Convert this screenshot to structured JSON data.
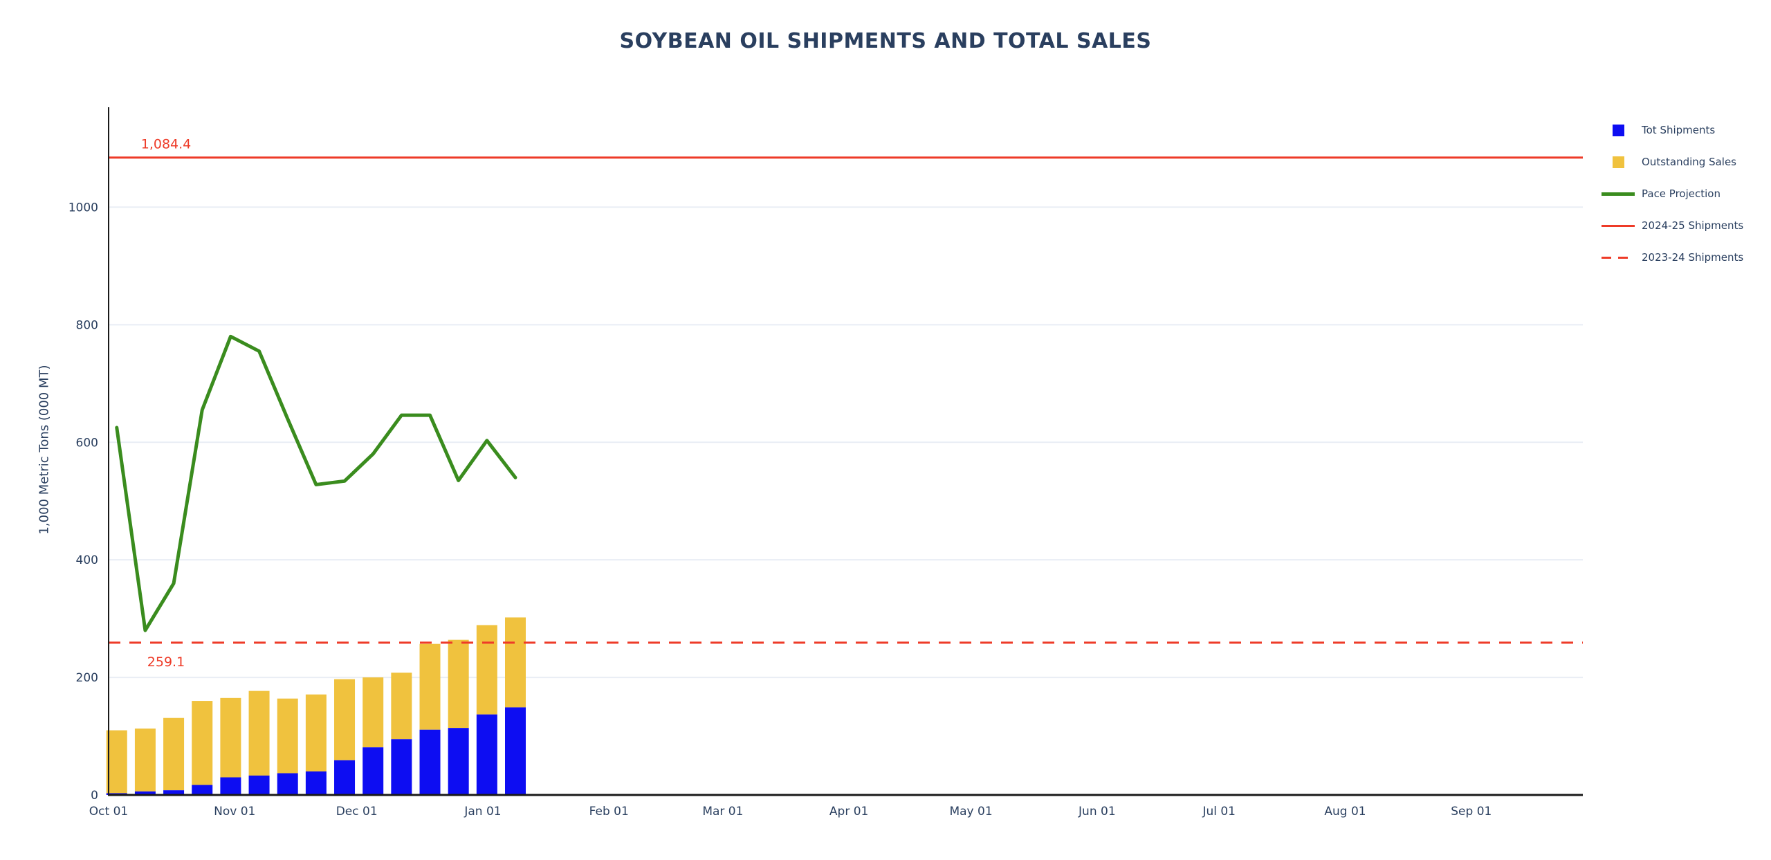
{
  "title": "SOYBEAN OIL SHIPMENTS AND TOTAL SALES",
  "y_axis": {
    "title": "1,000 Metric Tons (000 MT)",
    "tick_labels": [
      "0",
      "200",
      "400",
      "600",
      "800",
      "1000"
    ],
    "tick_values": [
      0,
      200,
      400,
      600,
      800,
      1000
    ]
  },
  "x_axis": {
    "tick_labels": [
      "Oct 01",
      "Nov 01",
      "Dec 01",
      "Jan 01",
      "Feb 01",
      "Mar 01",
      "Apr 01",
      "May 01",
      "Jun 01",
      "Jul 01",
      "Aug 01",
      "Sep 01"
    ],
    "tick_days": [
      0,
      31,
      61,
      92,
      123,
      151,
      182,
      212,
      243,
      273,
      304,
      335
    ]
  },
  "legend": {
    "items": [
      {
        "label": "Tot Shipments",
        "swatch": "square",
        "color": "#0d0df2"
      },
      {
        "label": "Outstanding Sales",
        "swatch": "square",
        "color": "#f0c23e"
      },
      {
        "label": "Pace Projection",
        "swatch": "line",
        "color": "#3a8c1e"
      },
      {
        "label": "2024-25 Shipments",
        "swatch": "line",
        "color": "#ee3b28"
      },
      {
        "label": "2023-24 Shipments",
        "swatch": "dashed-line",
        "color": "#ee3b28"
      }
    ]
  },
  "colors": {
    "shipments_bar": "#0d0df2",
    "outstanding_bar": "#f0c23e",
    "pace_line": "#3a8c1e",
    "reference_red": "#ee3b28",
    "text": "#2a3f5f",
    "grid": "#e9edf5",
    "axis": "#1a1a1a"
  },
  "chart_data": {
    "type": "bar",
    "note": "stacked weekly bars with overlaid line and two horizontal reference lines; x is a date axis Oct 01 - Sep 30",
    "categories": [
      "Oct 03",
      "Oct 10",
      "Oct 17",
      "Oct 24",
      "Oct 31",
      "Nov 07",
      "Nov 14",
      "Nov 21",
      "Nov 28",
      "Dec 05",
      "Dec 12",
      "Dec 19",
      "Dec 26",
      "Jan 02",
      "Jan 09"
    ],
    "category_days": [
      2,
      9,
      16,
      23,
      30,
      37,
      44,
      51,
      58,
      65,
      72,
      79,
      86,
      93,
      100
    ],
    "series": [
      {
        "name": "Tot Shipments",
        "type": "bar-stack",
        "color": "#0d0df2",
        "values": [
          3,
          6,
          8,
          17,
          30,
          33,
          37,
          40,
          59,
          81,
          95,
          111,
          114,
          137,
          149
        ]
      },
      {
        "name": "Outstanding Sales",
        "type": "bar-stack",
        "color": "#f0c23e",
        "values": [
          107,
          107,
          123,
          143,
          135,
          144,
          127,
          131,
          138,
          119,
          113,
          146,
          150,
          152,
          153
        ]
      },
      {
        "name": "Pace Projection",
        "type": "line",
        "color": "#3a8c1e",
        "values": [
          625,
          280,
          360,
          655,
          780,
          755,
          640,
          528,
          534,
          580,
          646,
          646,
          535,
          603,
          540
        ]
      }
    ],
    "reference_lines": [
      {
        "name": "2024-25 Shipments",
        "value": 1084.4,
        "label": "1,084.4",
        "style": "solid",
        "color": "#ee3b28"
      },
      {
        "name": "2023-24 Shipments",
        "value": 259.1,
        "label": "259.1",
        "style": "dashed",
        "color": "#ee3b28"
      }
    ],
    "title": "SOYBEAN OIL SHIPMENTS AND TOTAL SALES",
    "xlabel": "",
    "ylabel": "1,000 Metric Tons (000 MT)",
    "ylim": [
      0,
      1170
    ],
    "grid": true,
    "legend_position": "top-right"
  }
}
